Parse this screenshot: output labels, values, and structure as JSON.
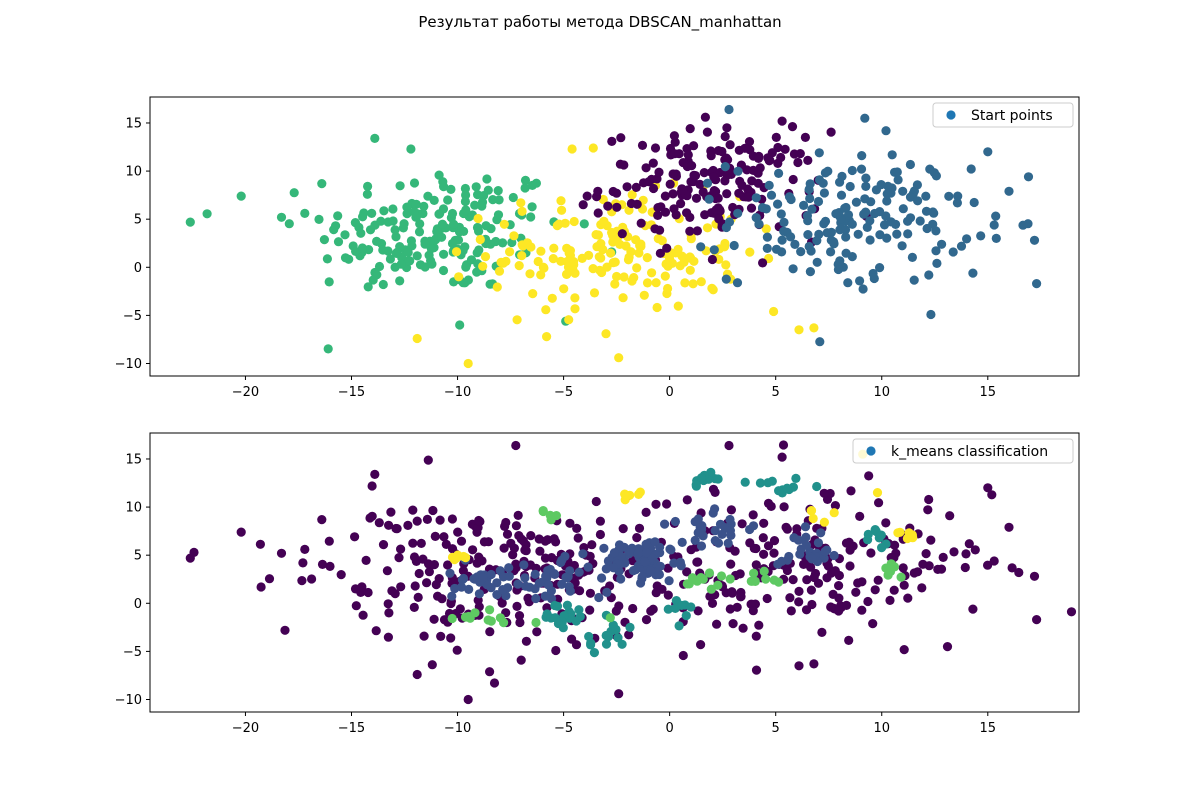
{
  "figure": {
    "title": "Результат работы метода DBSCAN_manhattan"
  },
  "chart_data": [
    {
      "type": "scatter",
      "panel": "top",
      "title": "",
      "xlabel": "",
      "ylabel": "",
      "xlim": [
        -24.5,
        19.3
      ],
      "ylim": [
        -11.3,
        17.7
      ],
      "xticks": [
        -20,
        -15,
        -10,
        -5,
        0,
        5,
        10,
        15
      ],
      "yticks": [
        -10,
        -5,
        0,
        5,
        10,
        15
      ],
      "grid": false,
      "legend": {
        "position": "top-right",
        "entries": [
          "Start points"
        ]
      },
      "marker_legend_color": "#1f77b4",
      "series": [
        {
          "color": "#35b779",
          "clusters": [
            {
              "center": [
                -10.5,
                4.0
              ],
              "spread": [
                2.8,
                3.3
              ],
              "n": 150
            },
            {
              "center": [
                -13.0,
                2.0
              ],
              "spread": [
                2.0,
                2.5
              ],
              "n": 40
            }
          ],
          "points": [
            {
              "x": -22.6,
              "y": 4.7
            },
            {
              "x": -20.2,
              "y": 7.4
            },
            {
              "x": -18.3,
              "y": 5.2
            },
            {
              "x": -17.2,
              "y": 5.6
            },
            {
              "x": -16.4,
              "y": 8.7
            },
            {
              "x": -13.9,
              "y": 13.4
            },
            {
              "x": -12.2,
              "y": 12.3
            },
            {
              "x": -9.9,
              "y": -6.0
            },
            {
              "x": -4.9,
              "y": -5.6
            }
          ]
        },
        {
          "color": "#fde725",
          "clusters": [
            {
              "center": [
                -2.5,
                1.5
              ],
              "spread": [
                3.0,
                3.0
              ],
              "n": 170
            }
          ],
          "points": [
            {
              "x": -9.5,
              "y": -10.0
            },
            {
              "x": -11.9,
              "y": -7.4
            },
            {
              "x": -2.4,
              "y": -9.4
            },
            {
              "x": -3.0,
              "y": -6.9
            },
            {
              "x": 4.9,
              "y": -4.6
            },
            {
              "x": 6.1,
              "y": -6.5
            },
            {
              "x": 6.8,
              "y": -6.3
            },
            {
              "x": -5.8,
              "y": -7.2
            },
            {
              "x": -4.6,
              "y": 12.3
            },
            {
              "x": -3.6,
              "y": 12.4
            }
          ]
        },
        {
          "color": "#440154",
          "clusters": [
            {
              "center": [
                2.0,
                8.5
              ],
              "spread": [
                2.6,
                2.8
              ],
              "n": 180
            }
          ],
          "points": [
            {
              "x": 2.7,
              "y": 14.5
            },
            {
              "x": 6.4,
              "y": 13.5
            },
            {
              "x": 5.3,
              "y": 15.2
            }
          ]
        },
        {
          "color": "#31688e",
          "clusters": [
            {
              "center": [
                8.5,
                5.0
              ],
              "spread": [
                2.8,
                3.3
              ],
              "n": 170
            }
          ],
          "points": [
            {
              "x": 2.8,
              "y": 16.4
            },
            {
              "x": 9.2,
              "y": 15.5
            },
            {
              "x": 10.2,
              "y": 14.2
            },
            {
              "x": 15.0,
              "y": 12.0
            },
            {
              "x": 16.0,
              "y": 7.9
            },
            {
              "x": 15.3,
              "y": 4.4
            },
            {
              "x": 15.4,
              "y": 3.0
            },
            {
              "x": 17.2,
              "y": 2.8
            },
            {
              "x": 17.3,
              "y": -1.7
            },
            {
              "x": 14.3,
              "y": -0.6
            },
            {
              "x": 12.6,
              "y": 0.4
            },
            {
              "x": 8.4,
              "y": -1.6
            },
            {
              "x": 3.2,
              "y": -1.6
            }
          ]
        }
      ]
    },
    {
      "type": "scatter",
      "panel": "bottom",
      "title": "",
      "xlabel": "",
      "ylabel": "",
      "xlim": [
        -24.5,
        19.3
      ],
      "ylim": [
        -11.3,
        17.7
      ],
      "xticks": [
        -20,
        -15,
        -10,
        -5,
        0,
        5,
        10,
        15
      ],
      "yticks": [
        -10,
        -5,
        0,
        5,
        10,
        15
      ],
      "grid": false,
      "legend": {
        "position": "top-right",
        "entries": [
          "k_means classification"
        ]
      },
      "marker_legend_color": "#1f77b4",
      "series": [
        {
          "color": "#440154",
          "clusters": [
            {
              "center": [
                -8.0,
                3.0
              ],
              "spread": [
                4.5,
                3.8
              ],
              "n": 260
            },
            {
              "center": [
                6.0,
                4.0
              ],
              "spread": [
                4.5,
                4.0
              ],
              "n": 200
            }
          ],
          "points": [
            {
              "x": -22.6,
              "y": 4.7
            },
            {
              "x": -20.2,
              "y": 7.4
            },
            {
              "x": -18.3,
              "y": 5.2
            },
            {
              "x": -17.2,
              "y": 5.6
            },
            {
              "x": -16.4,
              "y": 8.7
            },
            {
              "x": -13.9,
              "y": 13.4
            },
            {
              "x": -9.5,
              "y": -10.0
            },
            {
              "x": -11.9,
              "y": -7.4
            },
            {
              "x": -2.4,
              "y": -9.4
            },
            {
              "x": 6.1,
              "y": -6.5
            },
            {
              "x": 6.8,
              "y": -6.3
            },
            {
              "x": 15.0,
              "y": 12.0
            },
            {
              "x": 16.0,
              "y": 7.9
            },
            {
              "x": 15.3,
              "y": 4.4
            },
            {
              "x": 17.2,
              "y": 2.8
            },
            {
              "x": 17.3,
              "y": -1.7
            },
            {
              "x": 14.3,
              "y": -0.6
            },
            {
              "x": 2.8,
              "y": 16.4
            },
            {
              "x": 5.3,
              "y": 15.2
            }
          ]
        },
        {
          "color": "#3b528b",
          "clusters": [
            {
              "center": [
                -1.5,
                4.5
              ],
              "spread": [
                1.2,
                1.2
              ],
              "n": 70
            },
            {
              "center": [
                -5.5,
                2.5
              ],
              "spread": [
                1.0,
                1.0
              ],
              "n": 35
            },
            {
              "center": [
                -9.0,
                2.3
              ],
              "spread": [
                0.8,
                0.9
              ],
              "n": 30
            },
            {
              "center": [
                2.0,
                7.5
              ],
              "spread": [
                1.1,
                1.1
              ],
              "n": 30
            },
            {
              "center": [
                6.5,
                5.5
              ],
              "spread": [
                1.0,
                1.0
              ],
              "n": 25
            }
          ],
          "points": []
        },
        {
          "color": "#21918c",
          "clusters": [
            {
              "center": [
                -5.0,
                -1.5
              ],
              "spread": [
                0.6,
                0.8
              ],
              "n": 18
            },
            {
              "center": [
                -3.0,
                -3.5
              ],
              "spread": [
                0.7,
                0.9
              ],
              "n": 14
            },
            {
              "center": [
                1.5,
                13.0
              ],
              "spread": [
                0.6,
                0.5
              ],
              "n": 12
            },
            {
              "center": [
                5.5,
                12.0
              ],
              "spread": [
                0.7,
                0.7
              ],
              "n": 12
            },
            {
              "center": [
                0.5,
                -0.5
              ],
              "spread": [
                0.5,
                0.6
              ],
              "n": 8
            },
            {
              "center": [
                9.5,
                7.0
              ],
              "spread": [
                0.5,
                0.6
              ],
              "n": 8
            }
          ],
          "points": []
        },
        {
          "color": "#5ec962",
          "clusters": [
            {
              "center": [
                -9.5,
                -1.5
              ],
              "spread": [
                0.7,
                0.5
              ],
              "n": 10
            },
            {
              "center": [
                1.5,
                2.5
              ],
              "spread": [
                0.6,
                0.6
              ],
              "n": 12
            },
            {
              "center": [
                4.5,
                2.5
              ],
              "spread": [
                0.5,
                0.5
              ],
              "n": 8
            },
            {
              "center": [
                -5.5,
                9.0
              ],
              "spread": [
                0.4,
                0.4
              ],
              "n": 5
            },
            {
              "center": [
                10.5,
                3.0
              ],
              "spread": [
                0.5,
                0.5
              ],
              "n": 6
            }
          ],
          "points": [
            {
              "x": -2.8,
              "y": -1.5
            },
            {
              "x": -6.3,
              "y": -2.0
            }
          ]
        },
        {
          "color": "#fde725",
          "clusters": [
            {
              "center": [
                -10.0,
                5.0
              ],
              "spread": [
                0.4,
                0.4
              ],
              "n": 6
            },
            {
              "center": [
                11.2,
                7.3
              ],
              "spread": [
                0.4,
                0.4
              ],
              "n": 6
            },
            {
              "center": [
                -1.7,
                11.2
              ],
              "spread": [
                0.4,
                0.3
              ],
              "n": 5
            },
            {
              "center": [
                6.7,
                9.3
              ],
              "spread": [
                0.4,
                0.4
              ],
              "n": 5
            }
          ],
          "points": [
            {
              "x": 9.1,
              "y": 15.5
            },
            {
              "x": 9.8,
              "y": 11.5
            }
          ]
        }
      ]
    }
  ]
}
